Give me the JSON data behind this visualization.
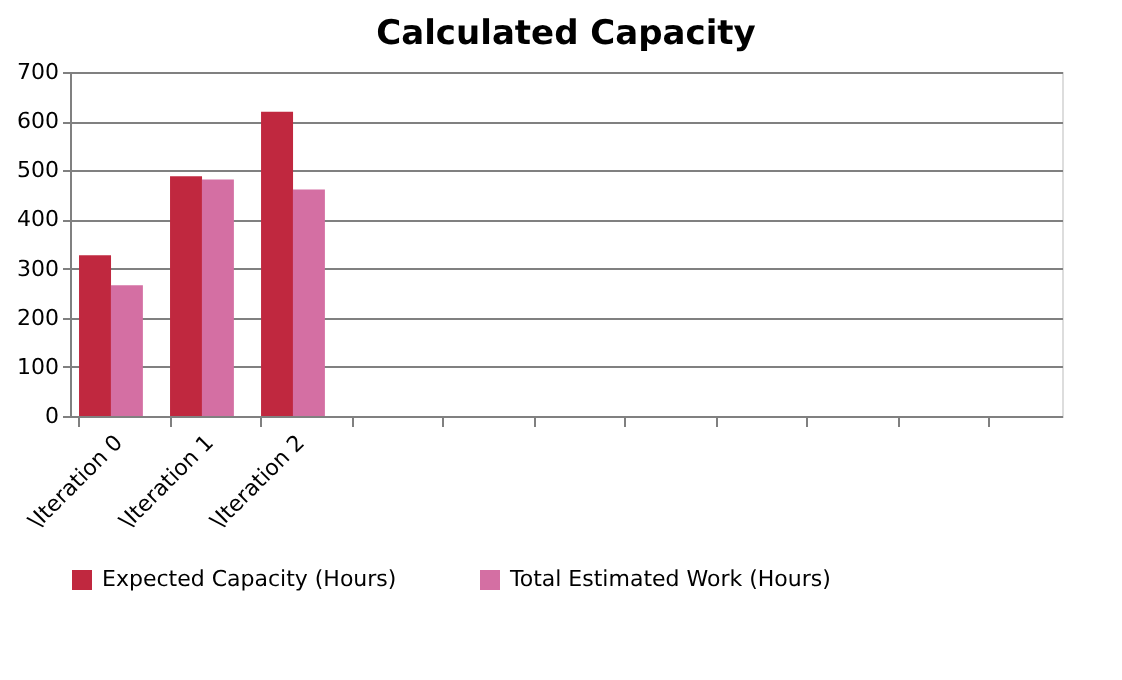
{
  "chart_data": {
    "type": "bar",
    "title": "Calculated Capacity",
    "categories": [
      "\\Iteration 0",
      "\\Iteration 1",
      "\\Iteration 2",
      null,
      null,
      null,
      null,
      null,
      null,
      null,
      null
    ],
    "series": [
      {
        "name": "Expected Capacity (Hours)",
        "color": "#c0283f",
        "values": [
          327,
          488,
          619,
          null,
          null,
          null,
          null,
          null,
          null,
          null,
          null
        ]
      },
      {
        "name": "Total Estimated Work (Hours)",
        "color": "#d46fa3",
        "values": [
          266,
          481,
          461,
          null,
          null,
          null,
          null,
          null,
          null,
          null,
          null
        ]
      }
    ],
    "ylim": [
      0,
      700
    ],
    "yticks": [
      0,
      100,
      200,
      300,
      400,
      500,
      600,
      700
    ],
    "grid": "y",
    "legend": "bottom"
  }
}
